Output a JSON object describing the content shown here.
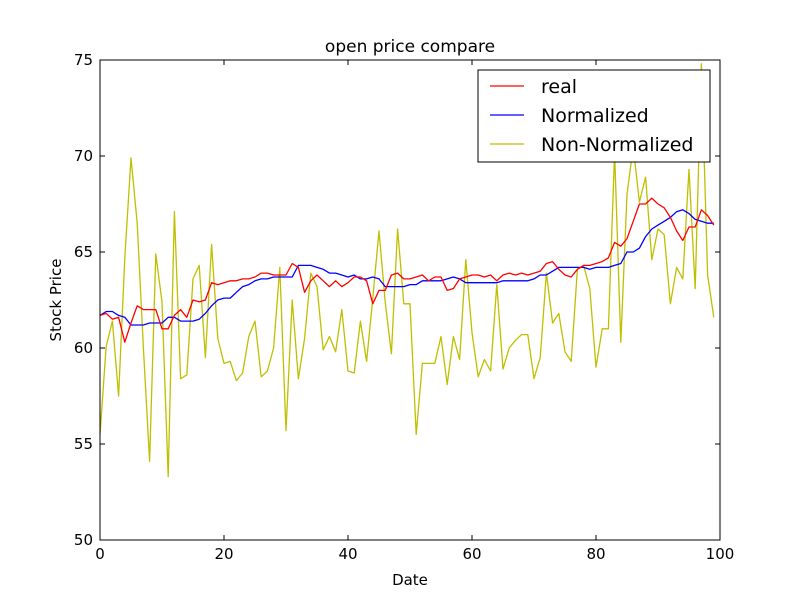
{
  "chart_data": {
    "type": "line",
    "title": "open price compare",
    "xlabel": "Date",
    "ylabel": "Stock Price",
    "xlim": [
      0,
      100
    ],
    "ylim": [
      50,
      75
    ],
    "xticks": [
      0,
      20,
      40,
      60,
      80,
      100
    ],
    "yticks": [
      50,
      55,
      60,
      65,
      70,
      75
    ],
    "xtick_labels": [
      "0",
      "20",
      "40",
      "60",
      "80",
      "100"
    ],
    "ytick_labels": [
      "50",
      "55",
      "60",
      "65",
      "70",
      "75"
    ],
    "grid": false,
    "legend_position": "top-right",
    "series": [
      {
        "name": "real",
        "color": "#ff0000",
        "x": [
          0,
          1,
          2,
          3,
          4,
          5,
          6,
          7,
          8,
          9,
          10,
          11,
          12,
          13,
          14,
          15,
          16,
          17,
          18,
          19,
          20,
          21,
          22,
          23,
          24,
          25,
          26,
          27,
          28,
          29,
          30,
          31,
          32,
          33,
          34,
          35,
          36,
          37,
          38,
          39,
          40,
          41,
          42,
          43,
          44,
          45,
          46,
          47,
          48,
          49,
          50,
          51,
          52,
          53,
          54,
          55,
          56,
          57,
          58,
          59,
          60,
          61,
          62,
          63,
          64,
          65,
          66,
          67,
          68,
          69,
          70,
          71,
          72,
          73,
          74,
          75,
          76,
          77,
          78,
          79,
          80,
          81,
          82,
          83,
          84,
          85,
          86,
          87,
          88,
          89,
          90,
          91,
          92,
          93,
          94,
          95,
          96,
          97,
          98,
          99
        ],
        "y": [
          61.7,
          61.8,
          61.5,
          61.6,
          60.3,
          61.3,
          62.2,
          62.0,
          62.0,
          62.0,
          61.0,
          61.0,
          61.7,
          62.0,
          61.6,
          62.5,
          62.4,
          62.5,
          63.4,
          63.3,
          63.4,
          63.5,
          63.5,
          63.6,
          63.6,
          63.7,
          63.9,
          63.9,
          63.8,
          63.8,
          63.8,
          64.4,
          64.2,
          62.9,
          63.5,
          63.8,
          63.5,
          63.2,
          63.5,
          63.2,
          63.4,
          63.7,
          63.7,
          63.5,
          62.3,
          63.0,
          63.0,
          63.8,
          63.9,
          63.6,
          63.6,
          63.7,
          63.8,
          63.5,
          63.7,
          63.7,
          63.0,
          63.1,
          63.6,
          63.7,
          63.8,
          63.8,
          63.7,
          63.8,
          63.5,
          63.8,
          63.9,
          63.8,
          63.9,
          63.8,
          63.9,
          64.0,
          64.4,
          64.5,
          64.1,
          63.8,
          63.7,
          64.1,
          64.3,
          64.3,
          64.4,
          64.5,
          64.7,
          65.5,
          65.3,
          65.7,
          66.6,
          67.5,
          67.5,
          67.8,
          67.5,
          67.3,
          66.8,
          66.1,
          65.6,
          66.3,
          66.3,
          67.2,
          66.9,
          66.4
        ]
      },
      {
        "name": "Normalized",
        "color": "#0000ff",
        "x": [
          0,
          1,
          2,
          3,
          4,
          5,
          6,
          7,
          8,
          9,
          10,
          11,
          12,
          13,
          14,
          15,
          16,
          17,
          18,
          19,
          20,
          21,
          22,
          23,
          24,
          25,
          26,
          27,
          28,
          29,
          30,
          31,
          32,
          33,
          34,
          35,
          36,
          37,
          38,
          39,
          40,
          41,
          42,
          43,
          44,
          45,
          46,
          47,
          48,
          49,
          50,
          51,
          52,
          53,
          54,
          55,
          56,
          57,
          58,
          59,
          60,
          61,
          62,
          63,
          64,
          65,
          66,
          67,
          68,
          69,
          70,
          71,
          72,
          73,
          74,
          75,
          76,
          77,
          78,
          79,
          80,
          81,
          82,
          83,
          84,
          85,
          86,
          87,
          88,
          89,
          90,
          91,
          92,
          93,
          94,
          95,
          96,
          97,
          98,
          99
        ],
        "y": [
          61.7,
          61.9,
          61.9,
          61.7,
          61.6,
          61.2,
          61.2,
          61.2,
          61.3,
          61.3,
          61.3,
          61.6,
          61.6,
          61.4,
          61.4,
          61.4,
          61.5,
          61.8,
          62.2,
          62.5,
          62.6,
          62.6,
          62.9,
          63.2,
          63.3,
          63.5,
          63.6,
          63.6,
          63.7,
          63.7,
          63.7,
          63.7,
          64.3,
          64.3,
          64.3,
          64.2,
          64.1,
          63.9,
          63.9,
          63.8,
          63.7,
          63.8,
          63.6,
          63.6,
          63.7,
          63.6,
          63.2,
          63.2,
          63.2,
          63.2,
          63.3,
          63.3,
          63.5,
          63.5,
          63.5,
          63.5,
          63.6,
          63.7,
          63.6,
          63.4,
          63.4,
          63.4,
          63.4,
          63.4,
          63.4,
          63.5,
          63.5,
          63.5,
          63.5,
          63.5,
          63.6,
          63.8,
          63.8,
          64.0,
          64.2,
          64.2,
          64.2,
          64.2,
          64.2,
          64.1,
          64.2,
          64.2,
          64.2,
          64.3,
          64.4,
          65.0,
          65.0,
          65.2,
          65.8,
          66.2,
          66.4,
          66.6,
          66.8,
          67.1,
          67.2,
          67.0,
          66.7,
          66.6,
          66.5,
          66.5
        ]
      },
      {
        "name": "Non-Normalized",
        "color": "#bfbf00",
        "x": [
          0,
          1,
          2,
          3,
          4,
          5,
          6,
          7,
          8,
          9,
          10,
          11,
          12,
          13,
          14,
          15,
          16,
          17,
          18,
          19,
          20,
          21,
          22,
          23,
          24,
          25,
          26,
          27,
          28,
          29,
          30,
          31,
          32,
          33,
          34,
          35,
          36,
          37,
          38,
          39,
          40,
          41,
          42,
          43,
          44,
          45,
          46,
          47,
          48,
          49,
          50,
          51,
          52,
          53,
          54,
          55,
          56,
          57,
          58,
          59,
          60,
          61,
          62,
          63,
          64,
          65,
          66,
          67,
          68,
          69,
          70,
          71,
          72,
          73,
          74,
          75,
          76,
          77,
          78,
          79,
          80,
          81,
          82,
          83,
          84,
          85,
          86,
          87,
          88,
          89,
          90,
          91,
          92,
          93,
          94,
          95,
          96,
          97,
          98,
          99
        ],
        "y": [
          55.5,
          60.1,
          61.4,
          57.5,
          64.7,
          69.9,
          66.5,
          60.0,
          54.1,
          64.9,
          62.4,
          53.3,
          67.1,
          58.4,
          58.6,
          63.6,
          64.3,
          59.5,
          65.4,
          60.5,
          59.2,
          59.3,
          58.3,
          58.7,
          60.6,
          61.4,
          58.5,
          58.8,
          60.0,
          64.2,
          55.7,
          62.5,
          58.4,
          60.5,
          63.9,
          63.2,
          59.9,
          60.6,
          59.8,
          62.0,
          58.8,
          58.7,
          61.4,
          59.3,
          62.6,
          66.1,
          62.4,
          59.7,
          66.2,
          62.3,
          62.3,
          55.5,
          59.2,
          59.2,
          59.2,
          60.6,
          58.1,
          60.6,
          59.4,
          64.6,
          60.8,
          58.5,
          59.4,
          58.8,
          63.3,
          58.9,
          60.0,
          60.4,
          60.7,
          60.7,
          58.4,
          59.5,
          63.9,
          61.3,
          61.8,
          59.8,
          59.3,
          64.1,
          64.3,
          63.1,
          59.0,
          61.0,
          61.0,
          70.2,
          60.3,
          68.0,
          70.5,
          67.6,
          68.9,
          64.6,
          66.2,
          65.9,
          62.3,
          64.2,
          63.6,
          69.3,
          63.1,
          74.8,
          63.8,
          61.6
        ]
      }
    ]
  }
}
